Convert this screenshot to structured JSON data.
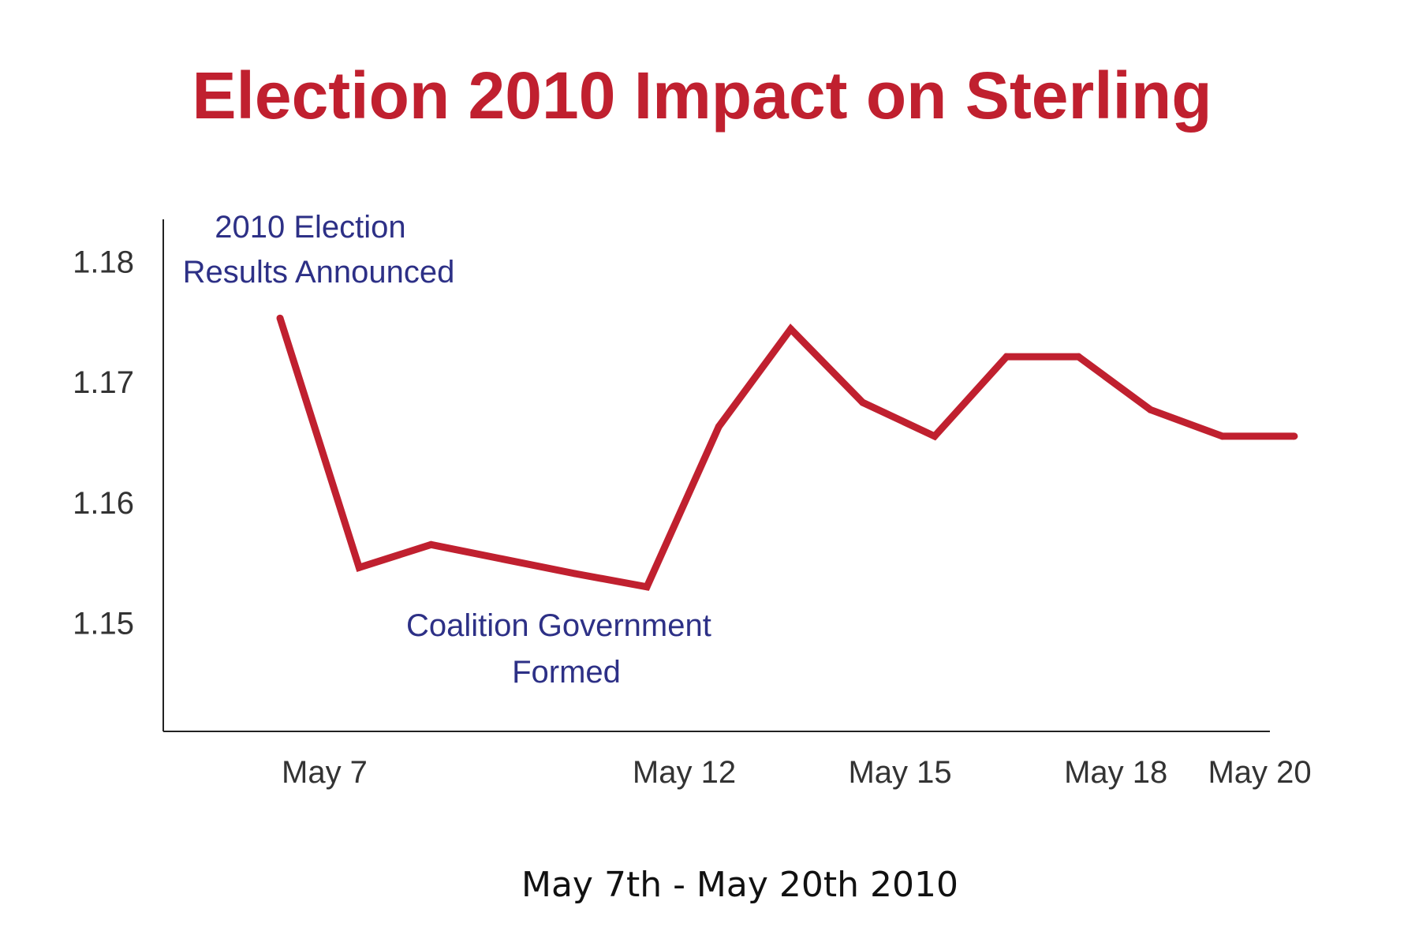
{
  "chart_data": {
    "type": "line",
    "title": "Election 2010 Impact on Sterling",
    "xlabel": "May 7th - May 20th 2010",
    "ylabel": "",
    "ylim": [
      1.141,
      1.1835
    ],
    "y_ticks": [
      "1.18",
      "1.17",
      "1.16",
      "1.15"
    ],
    "x_tick_labels": [
      {
        "label": "May 7",
        "day": 7
      },
      {
        "label": "May 12",
        "day": 12
      },
      {
        "label": "May 15",
        "day": 15
      },
      {
        "label": "May 18",
        "day": 18
      },
      {
        "label": "May 20",
        "day": 20
      }
    ],
    "grid": false,
    "series": [
      {
        "x": [
          6.6,
          7.7,
          8.7,
          10.7,
          11.7,
          12.7,
          13.7,
          14.7,
          15.7,
          16.7,
          17.7,
          18.7,
          19.7,
          20.7
        ],
        "y": [
          1.1753,
          1.1546,
          1.1565,
          1.1541,
          1.153,
          1.1663,
          1.1744,
          1.1683,
          1.1655,
          1.1721,
          1.1721,
          1.1677,
          1.1655,
          1.1655
        ]
      }
    ],
    "annotations": [
      {
        "id": "election",
        "lines": [
          "2010 Election",
          "Results Announced"
        ]
      },
      {
        "id": "coalition",
        "lines": [
          "Coalition Government",
          "Formed"
        ]
      }
    ],
    "colors": {
      "title": "#c0202f",
      "line": "#c0202f",
      "annotation": "#2d3086",
      "axis": "#222222"
    }
  }
}
